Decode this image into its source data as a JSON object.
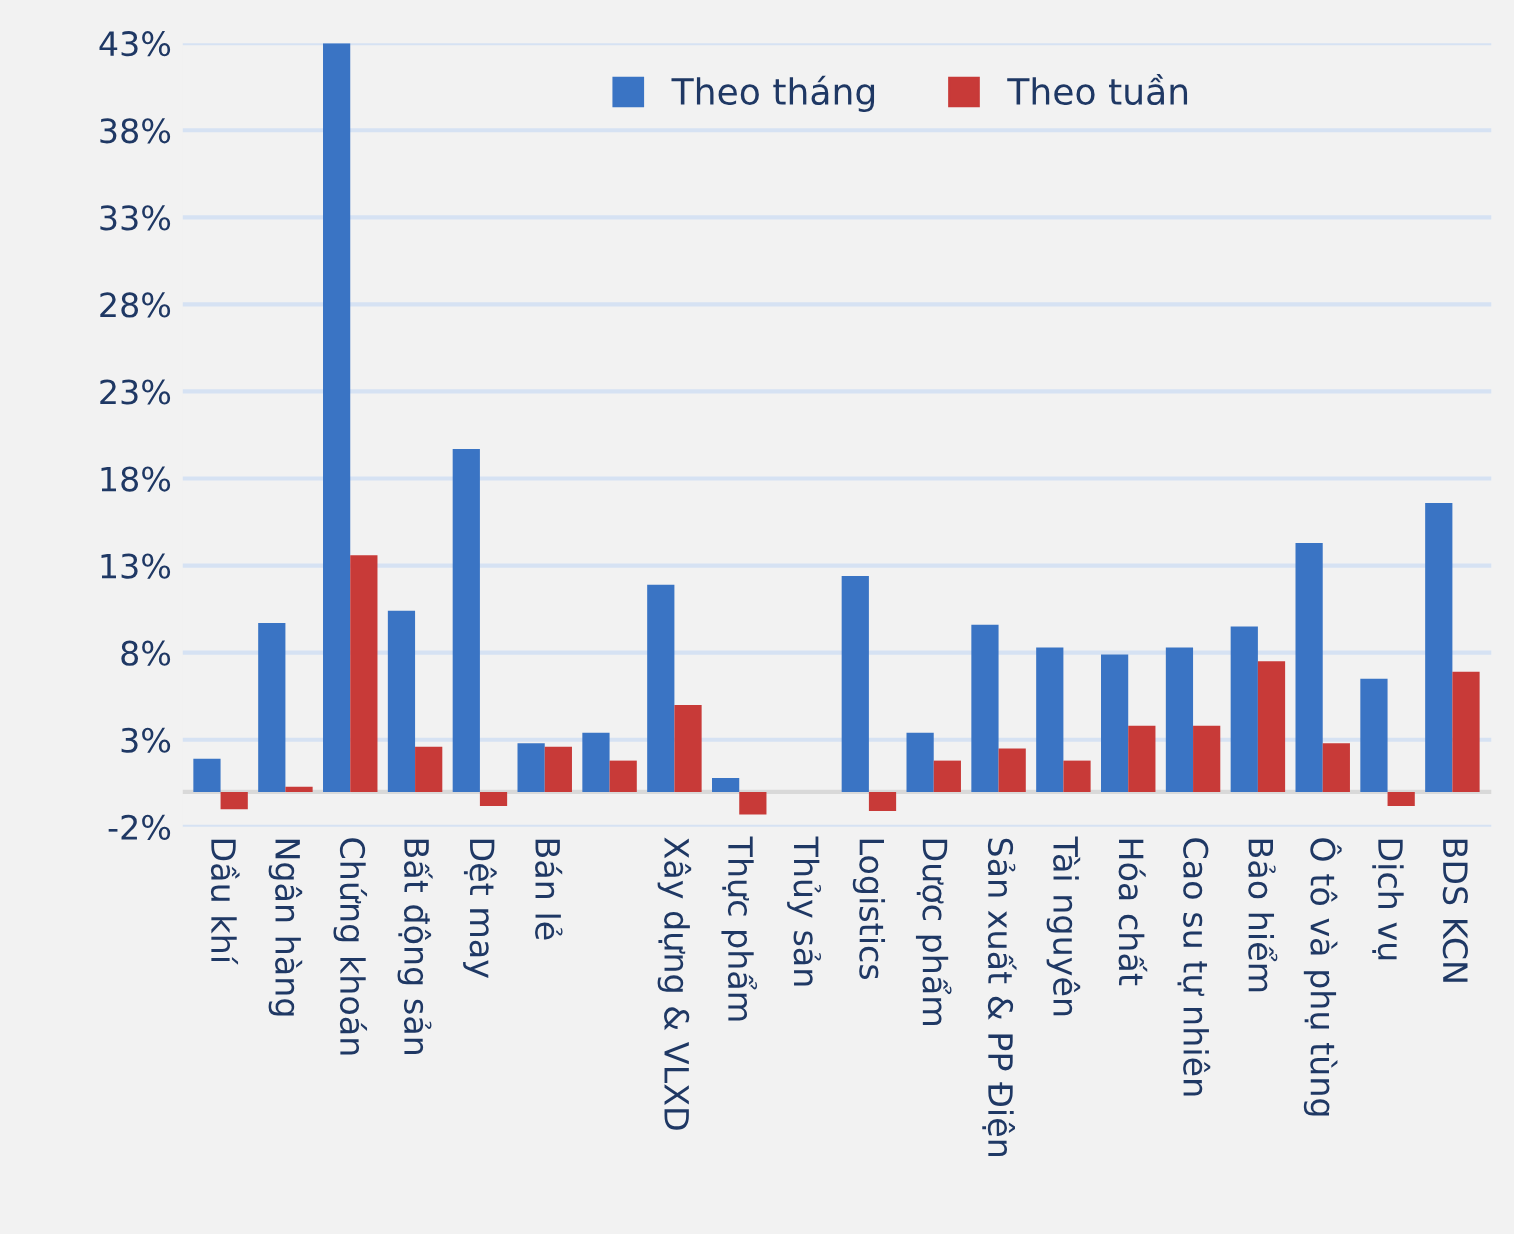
{
  "chart_data": {
    "type": "bar",
    "categories": [
      "Dầu khí",
      "Ngân hàng",
      "Chứng khoán",
      "Bất động sản",
      "Dệt may",
      "Bán lẻ",
      null,
      "Xây dựng & VLXD",
      "Thực phẩm",
      "Thủy sản",
      "Logistics",
      "Dược phẩm",
      "Sản xuất & PP Điện",
      "Tài nguyên",
      "Hóa chất",
      "Cao su tự nhiên",
      "Bảo hiểm",
      "Ô tô và phụ tùng",
      "Dịch vụ",
      "BDS KCN"
    ],
    "series": [
      {
        "name": "Theo tháng",
        "color": "#3a74c4",
        "values": [
          1.9,
          9.7,
          43.0,
          10.4,
          19.7,
          2.8,
          3.4,
          11.9,
          0.8,
          0,
          12.4,
          3.4,
          9.6,
          8.3,
          7.9,
          8.3,
          9.5,
          14.3,
          6.5,
          16.6
        ]
      },
      {
        "name": "Theo tuần",
        "color": "#c83a38",
        "values": [
          -1.0,
          0.3,
          13.6,
          2.6,
          -0.8,
          2.6,
          1.8,
          5.0,
          -1.3,
          0,
          -1.1,
          1.8,
          2.5,
          1.8,
          3.8,
          3.8,
          7.5,
          2.8,
          -0.8,
          6.9
        ]
      }
    ],
    "ylim": [
      -2,
      43
    ],
    "yticks": [
      {
        "value": -2,
        "label": "-2%"
      },
      {
        "value": 3,
        "label": "3%"
      },
      {
        "value": 8,
        "label": "8%"
      },
      {
        "value": 13,
        "label": "13%"
      },
      {
        "value": 18,
        "label": "18%"
      },
      {
        "value": 23,
        "label": "23%"
      },
      {
        "value": 28,
        "label": "28%"
      },
      {
        "value": 33,
        "label": "33%"
      },
      {
        "value": 38,
        "label": "38%"
      },
      {
        "value": 43,
        "label": "43%"
      }
    ],
    "grid": "y",
    "legend": "top"
  }
}
